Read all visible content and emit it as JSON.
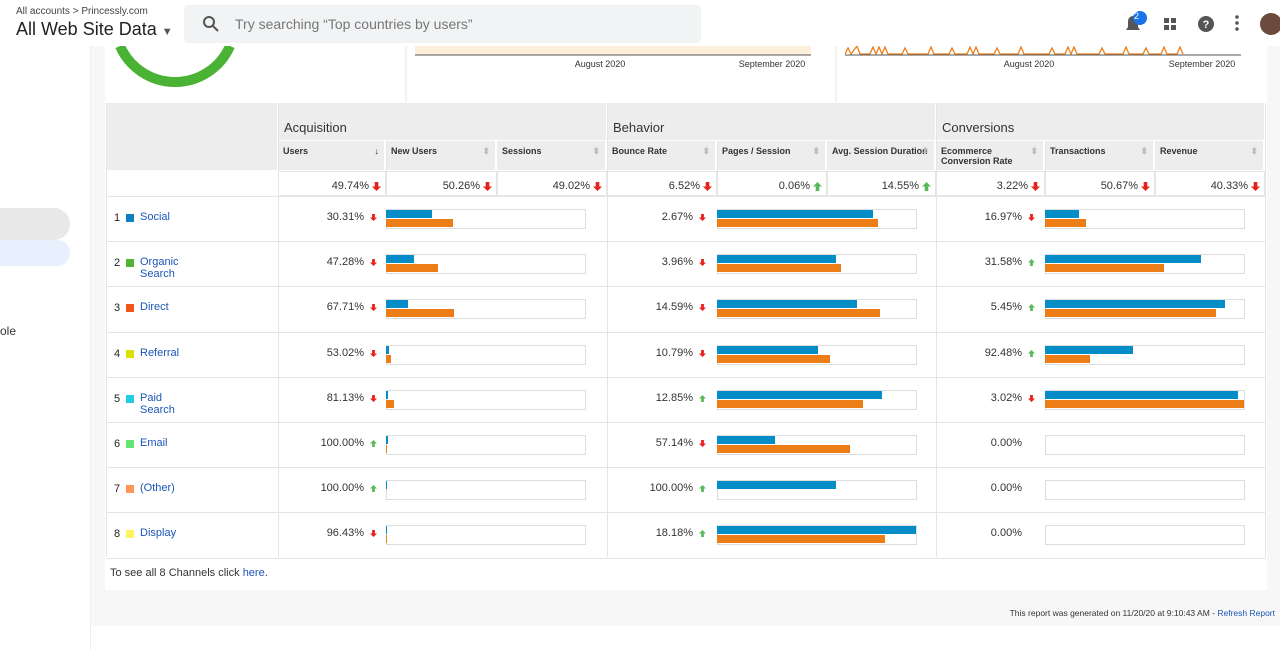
{
  "header": {
    "breadcrumb_account": "All accounts",
    "breadcrumb_property": "Princessly.com",
    "view": "All Web Site Data",
    "search_placeholder": "Try searching “Top countries by users”",
    "notifications": "2"
  },
  "sidebar": {
    "fragment": "ole"
  },
  "charts": [
    {
      "x_labels": [
        "August 2020",
        "September 2020"
      ]
    },
    {
      "x_labels": [
        "August 2020",
        "September 2020"
      ]
    }
  ],
  "table": {
    "bar_colors": {
      "current": "#058dc7",
      "previous": "#ed7e17"
    },
    "groups": [
      {
        "name": "Acquisition",
        "columns": [
          "Users",
          "New Users",
          "Sessions"
        ]
      },
      {
        "name": "Behavior",
        "columns": [
          "Bounce Rate",
          "Pages / Session",
          "Avg. Session Duration"
        ]
      },
      {
        "name": "Conversions",
        "columns": [
          "Ecommerce Conversion Rate",
          "Transactions",
          "Revenue"
        ]
      }
    ],
    "summary": [
      {
        "text": "49.74%",
        "trend": "down"
      },
      {
        "text": "50.26%",
        "trend": "down"
      },
      {
        "text": "49.02%",
        "trend": "down"
      },
      {
        "text": "6.52%",
        "trend": "down"
      },
      {
        "text": "0.06%",
        "trend": "up"
      },
      {
        "text": "14.55%",
        "trend": "up"
      },
      {
        "text": "3.22%",
        "trend": "down"
      },
      {
        "text": "50.67%",
        "trend": "down"
      },
      {
        "text": "40.33%",
        "trend": "down"
      }
    ],
    "rows": [
      {
        "rank": "1",
        "name": "Social",
        "swatch": "#0f7fc5",
        "cells": [
          {
            "text": "30.31%",
            "trend": "down",
            "bars": [
              23,
              33.5
            ]
          },
          {
            "text": "2.67%",
            "trend": "down",
            "bars": [
              78,
              80.5
            ]
          },
          {
            "text": "16.97%",
            "trend": "down",
            "bars": [
              17,
              20.5
            ]
          }
        ]
      },
      {
        "rank": "2",
        "name": "Organic Search",
        "swatch": "#50b432",
        "cells": [
          {
            "text": "47.28%",
            "trend": "down",
            "bars": [
              14,
              26
            ]
          },
          {
            "text": "3.96%",
            "trend": "down",
            "bars": [
              59.5,
              62
            ]
          },
          {
            "text": "31.58%",
            "trend": "up",
            "bars": [
              78,
              59.5
            ]
          }
        ]
      },
      {
        "rank": "3",
        "name": "Direct",
        "swatch": "#ed561b",
        "cells": [
          {
            "text": "67.71%",
            "trend": "down",
            "bars": [
              11,
              34
            ]
          },
          {
            "text": "14.59%",
            "trend": "down",
            "bars": [
              70,
              81.5
            ]
          },
          {
            "text": "5.45%",
            "trend": "up",
            "bars": [
              90,
              85.5
            ]
          }
        ]
      },
      {
        "rank": "4",
        "name": "Referral",
        "swatch": "#dddf00",
        "cells": [
          {
            "text": "53.02%",
            "trend": "down",
            "bars": [
              1.5,
              2.5
            ]
          },
          {
            "text": "10.79%",
            "trend": "down",
            "bars": [
              50.5,
              56.5
            ]
          },
          {
            "text": "92.48%",
            "trend": "up",
            "bars": [
              44,
              22.5
            ]
          }
        ]
      },
      {
        "rank": "5",
        "name": "Paid Search",
        "swatch": "#24cbe5",
        "cells": [
          {
            "text": "81.13%",
            "trend": "down",
            "bars": [
              1,
              4
            ]
          },
          {
            "text": "12.85%",
            "trend": "up",
            "bars": [
              82.5,
              73
            ]
          },
          {
            "text": "3.02%",
            "trend": "down",
            "bars": [
              96.5,
              99.5
            ]
          }
        ]
      },
      {
        "rank": "6",
        "name": "Email",
        "swatch": "#64e572",
        "cells": [
          {
            "text": "100.00%",
            "trend": "up",
            "bars": [
              1,
              0.5
            ]
          },
          {
            "text": "57.14%",
            "trend": "down",
            "bars": [
              29,
              66.5
            ]
          },
          {
            "text": "0.00%"
          }
        ]
      },
      {
        "rank": "7",
        "name": "(Other)",
        "swatch": "#ff9655",
        "cells": [
          {
            "text": "100.00%",
            "trend": "up",
            "bars": [
              0.5,
              0
            ]
          },
          {
            "text": "100.00%",
            "trend": "up",
            "bars": [
              59.5,
              0
            ]
          },
          {
            "text": "0.00%"
          }
        ]
      },
      {
        "rank": "8",
        "name": "Display",
        "swatch": "#fff263",
        "cells": [
          {
            "text": "96.43%",
            "trend": "down",
            "bars": [
              0.5,
              0.5
            ]
          },
          {
            "text": "18.18%",
            "trend": "up",
            "bars": [
              99.5,
              84
            ]
          },
          {
            "text": "0.00%"
          }
        ]
      }
    ]
  },
  "footer": {
    "note_prefix": "To see all 8 Channels click ",
    "note_link": "here",
    "note_suffix": ".",
    "generated": "This report was generated on 11/20/20 at 9:10:43 AM - ",
    "refresh": "Refresh Report"
  }
}
